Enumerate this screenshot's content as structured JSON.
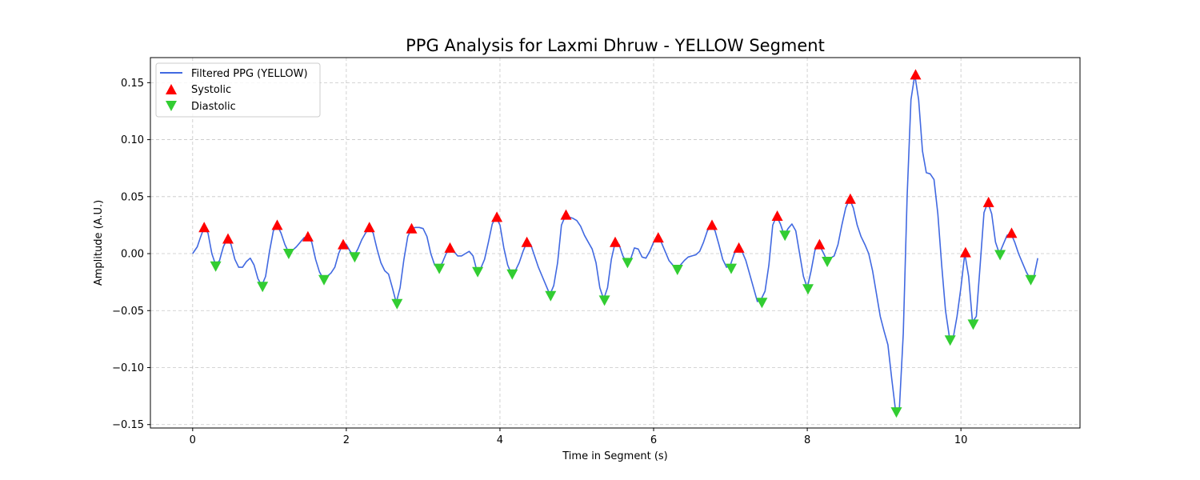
{
  "chart_data": {
    "type": "line",
    "title": "PPG Analysis for Laxmi Dhruw - YELLOW Segment",
    "xlabel": "Time in Segment (s)",
    "ylabel": "Amplitude (A.U.)",
    "xlim": [
      -0.55,
      11.55
    ],
    "ylim": [
      -0.153,
      0.172
    ],
    "xticks": [
      0,
      2,
      4,
      6,
      8,
      10
    ],
    "yticks": [
      -0.15,
      -0.1,
      -0.05,
      0.0,
      0.05,
      0.1,
      0.15
    ],
    "xtick_labels": [
      "0",
      "2",
      "4",
      "6",
      "8",
      "10"
    ],
    "ytick_labels": [
      "−0.15",
      "−0.10",
      "−0.05",
      "0.00",
      "0.05",
      "0.10",
      "0.15"
    ],
    "grid": true,
    "legend_position": "top-left",
    "series": [
      {
        "name": "Filtered PPG (YELLOW)",
        "kind": "line",
        "color": "#4169e1",
        "points": [
          [
            0.0,
            0.0
          ],
          [
            0.06,
            0.006
          ],
          [
            0.1,
            0.014
          ],
          [
            0.15,
            0.023
          ],
          [
            0.2,
            0.018
          ],
          [
            0.25,
            0.0
          ],
          [
            0.3,
            -0.01
          ],
          [
            0.35,
            -0.006
          ],
          [
            0.4,
            0.006
          ],
          [
            0.45,
            0.013
          ],
          [
            0.5,
            0.008
          ],
          [
            0.55,
            -0.005
          ],
          [
            0.6,
            -0.012
          ],
          [
            0.65,
            -0.012
          ],
          [
            0.7,
            -0.007
          ],
          [
            0.75,
            -0.004
          ],
          [
            0.8,
            -0.01
          ],
          [
            0.85,
            -0.022
          ],
          [
            0.9,
            -0.028
          ],
          [
            0.95,
            -0.02
          ],
          [
            1.0,
            0.002
          ],
          [
            1.05,
            0.02
          ],
          [
            1.1,
            0.025
          ],
          [
            1.15,
            0.018
          ],
          [
            1.2,
            0.008
          ],
          [
            1.25,
            0.001
          ],
          [
            1.3,
            0.003
          ],
          [
            1.35,
            0.006
          ],
          [
            1.4,
            0.01
          ],
          [
            1.45,
            0.014
          ],
          [
            1.5,
            0.015
          ],
          [
            1.55,
            0.01
          ],
          [
            1.6,
            -0.005
          ],
          [
            1.65,
            -0.016
          ],
          [
            1.7,
            -0.022
          ],
          [
            1.75,
            -0.02
          ],
          [
            1.8,
            -0.017
          ],
          [
            1.85,
            -0.012
          ],
          [
            1.9,
            0.0
          ],
          [
            1.95,
            0.008
          ],
          [
            2.0,
            0.008
          ],
          [
            2.05,
            0.002
          ],
          [
            2.1,
            -0.002
          ],
          [
            2.15,
            0.004
          ],
          [
            2.2,
            0.012
          ],
          [
            2.25,
            0.018
          ],
          [
            2.3,
            0.023
          ],
          [
            2.35,
            0.018
          ],
          [
            2.4,
            0.004
          ],
          [
            2.45,
            -0.008
          ],
          [
            2.5,
            -0.015
          ],
          [
            2.55,
            -0.018
          ],
          [
            2.6,
            -0.03
          ],
          [
            2.65,
            -0.043
          ],
          [
            2.7,
            -0.03
          ],
          [
            2.75,
            -0.005
          ],
          [
            2.8,
            0.015
          ],
          [
            2.85,
            0.022
          ],
          [
            2.9,
            0.023
          ],
          [
            2.95,
            0.023
          ],
          [
            3.0,
            0.022
          ],
          [
            3.05,
            0.015
          ],
          [
            3.1,
            0.0
          ],
          [
            3.15,
            -0.01
          ],
          [
            3.2,
            -0.013
          ],
          [
            3.25,
            -0.008
          ],
          [
            3.3,
            0.0
          ],
          [
            3.35,
            0.005
          ],
          [
            3.4,
            0.002
          ],
          [
            3.45,
            -0.002
          ],
          [
            3.5,
            -0.002
          ],
          [
            3.55,
            0.0
          ],
          [
            3.6,
            0.002
          ],
          [
            3.65,
            -0.002
          ],
          [
            3.7,
            -0.015
          ],
          [
            3.75,
            -0.013
          ],
          [
            3.8,
            -0.005
          ],
          [
            3.85,
            0.01
          ],
          [
            3.9,
            0.026
          ],
          [
            3.95,
            0.032
          ],
          [
            4.0,
            0.025
          ],
          [
            4.05,
            0.005
          ],
          [
            4.1,
            -0.01
          ],
          [
            4.15,
            -0.018
          ],
          [
            4.2,
            -0.015
          ],
          [
            4.25,
            -0.008
          ],
          [
            4.3,
            0.002
          ],
          [
            4.35,
            0.01
          ],
          [
            4.4,
            0.008
          ],
          [
            4.45,
            -0.002
          ],
          [
            4.5,
            -0.012
          ],
          [
            4.55,
            -0.02
          ],
          [
            4.6,
            -0.028
          ],
          [
            4.65,
            -0.036
          ],
          [
            4.7,
            -0.028
          ],
          [
            4.75,
            -0.008
          ],
          [
            4.8,
            0.025
          ],
          [
            4.85,
            0.033
          ],
          [
            4.9,
            0.032
          ],
          [
            4.95,
            0.031
          ],
          [
            5.0,
            0.029
          ],
          [
            5.05,
            0.024
          ],
          [
            5.1,
            0.016
          ],
          [
            5.15,
            0.01
          ],
          [
            5.2,
            0.004
          ],
          [
            5.25,
            -0.008
          ],
          [
            5.3,
            -0.03
          ],
          [
            5.35,
            -0.04
          ],
          [
            5.4,
            -0.03
          ],
          [
            5.45,
            -0.005
          ],
          [
            5.5,
            0.01
          ],
          [
            5.55,
            0.008
          ],
          [
            5.6,
            -0.002
          ],
          [
            5.65,
            -0.008
          ],
          [
            5.7,
            -0.005
          ],
          [
            5.75,
            0.005
          ],
          [
            5.8,
            0.004
          ],
          [
            5.85,
            -0.003
          ],
          [
            5.9,
            -0.004
          ],
          [
            5.95,
            0.002
          ],
          [
            6.0,
            0.01
          ],
          [
            6.05,
            0.014
          ],
          [
            6.1,
            0.01
          ],
          [
            6.15,
            0.002
          ],
          [
            6.2,
            -0.006
          ],
          [
            6.25,
            -0.01
          ],
          [
            6.3,
            -0.013
          ],
          [
            6.35,
            -0.01
          ],
          [
            6.4,
            -0.006
          ],
          [
            6.45,
            -0.003
          ],
          [
            6.5,
            -0.002
          ],
          [
            6.55,
            -0.001
          ],
          [
            6.6,
            0.002
          ],
          [
            6.65,
            0.01
          ],
          [
            6.7,
            0.02
          ],
          [
            6.75,
            0.025
          ],
          [
            6.8,
            0.02
          ],
          [
            6.85,
            0.008
          ],
          [
            6.9,
            -0.005
          ],
          [
            6.95,
            -0.012
          ],
          [
            7.0,
            -0.01
          ],
          [
            7.05,
            0.0
          ],
          [
            7.1,
            0.006
          ],
          [
            7.15,
            0.002
          ],
          [
            7.2,
            -0.006
          ],
          [
            7.25,
            -0.018
          ],
          [
            7.3,
            -0.03
          ],
          [
            7.35,
            -0.042
          ],
          [
            7.4,
            -0.04
          ],
          [
            7.45,
            -0.033
          ],
          [
            7.5,
            -0.01
          ],
          [
            7.55,
            0.025
          ],
          [
            7.6,
            0.033
          ],
          [
            7.65,
            0.026
          ],
          [
            7.7,
            0.016
          ],
          [
            7.75,
            0.022
          ],
          [
            7.8,
            0.026
          ],
          [
            7.85,
            0.02
          ],
          [
            7.9,
            0.0
          ],
          [
            7.95,
            -0.02
          ],
          [
            8.0,
            -0.03
          ],
          [
            8.05,
            -0.015
          ],
          [
            8.1,
            0.003
          ],
          [
            8.15,
            0.008
          ],
          [
            8.2,
            0.002
          ],
          [
            8.25,
            -0.005
          ],
          [
            8.3,
            -0.004
          ],
          [
            8.35,
            -0.002
          ],
          [
            8.4,
            0.008
          ],
          [
            8.45,
            0.025
          ],
          [
            8.5,
            0.04
          ],
          [
            8.55,
            0.048
          ],
          [
            8.6,
            0.04
          ],
          [
            8.65,
            0.025
          ],
          [
            8.7,
            0.015
          ],
          [
            8.75,
            0.008
          ],
          [
            8.8,
            0.0
          ],
          [
            8.85,
            -0.015
          ],
          [
            8.9,
            -0.035
          ],
          [
            8.95,
            -0.055
          ],
          [
            9.0,
            -0.068
          ],
          [
            9.05,
            -0.08
          ],
          [
            9.1,
            -0.11
          ],
          [
            9.15,
            -0.138
          ],
          [
            9.2,
            -0.135
          ],
          [
            9.25,
            -0.07
          ],
          [
            9.3,
            0.05
          ],
          [
            9.35,
            0.135
          ],
          [
            9.4,
            0.157
          ],
          [
            9.45,
            0.135
          ],
          [
            9.5,
            0.09
          ],
          [
            9.55,
            0.071
          ],
          [
            9.6,
            0.07
          ],
          [
            9.65,
            0.065
          ],
          [
            9.7,
            0.035
          ],
          [
            9.75,
            -0.01
          ],
          [
            9.8,
            -0.05
          ],
          [
            9.85,
            -0.073
          ],
          [
            9.9,
            -0.074
          ],
          [
            9.95,
            -0.055
          ],
          [
            10.0,
            -0.03
          ],
          [
            10.05,
            0.0
          ],
          [
            10.1,
            -0.02
          ],
          [
            10.15,
            -0.06
          ],
          [
            10.2,
            -0.055
          ],
          [
            10.25,
            -0.01
          ],
          [
            10.3,
            0.036
          ],
          [
            10.35,
            0.045
          ],
          [
            10.4,
            0.035
          ],
          [
            10.45,
            0.01
          ],
          [
            10.5,
            0.0
          ],
          [
            10.55,
            0.008
          ],
          [
            10.6,
            0.016
          ],
          [
            10.65,
            0.018
          ],
          [
            10.7,
            0.01
          ],
          [
            10.75,
            0.0
          ],
          [
            10.8,
            -0.008
          ],
          [
            10.85,
            -0.016
          ],
          [
            10.9,
            -0.022
          ],
          [
            10.95,
            -0.02
          ],
          [
            11.0,
            -0.004
          ]
        ]
      },
      {
        "name": "Systolic",
        "kind": "marker-up",
        "color": "#ff0000",
        "points": [
          [
            0.15,
            0.023
          ],
          [
            0.46,
            0.013
          ],
          [
            1.1,
            0.025
          ],
          [
            1.5,
            0.015
          ],
          [
            1.96,
            0.008
          ],
          [
            2.3,
            0.023
          ],
          [
            2.85,
            0.022
          ],
          [
            3.35,
            0.005
          ],
          [
            3.96,
            0.032
          ],
          [
            4.35,
            0.01
          ],
          [
            4.86,
            0.034
          ],
          [
            5.5,
            0.01
          ],
          [
            6.06,
            0.014
          ],
          [
            6.76,
            0.025
          ],
          [
            7.11,
            0.005
          ],
          [
            7.61,
            0.033
          ],
          [
            8.16,
            0.008
          ],
          [
            8.56,
            0.048
          ],
          [
            9.41,
            0.157
          ],
          [
            10.06,
            0.001
          ],
          [
            10.36,
            0.045
          ],
          [
            10.66,
            0.018
          ]
        ]
      },
      {
        "name": "Diastolic",
        "kind": "marker-down",
        "color": "#32cd32",
        "points": [
          [
            0.3,
            -0.011
          ],
          [
            0.91,
            -0.029
          ],
          [
            1.25,
            0.0
          ],
          [
            1.71,
            -0.023
          ],
          [
            2.11,
            -0.003
          ],
          [
            2.66,
            -0.044
          ],
          [
            3.21,
            -0.013
          ],
          [
            3.71,
            -0.016
          ],
          [
            4.16,
            -0.018
          ],
          [
            4.66,
            -0.037
          ],
          [
            5.36,
            -0.041
          ],
          [
            5.66,
            -0.008
          ],
          [
            6.31,
            -0.014
          ],
          [
            7.01,
            -0.013
          ],
          [
            7.41,
            -0.043
          ],
          [
            7.71,
            0.016
          ],
          [
            8.01,
            -0.031
          ],
          [
            8.26,
            -0.007
          ],
          [
            9.16,
            -0.139
          ],
          [
            9.86,
            -0.076
          ],
          [
            10.16,
            -0.062
          ],
          [
            10.51,
            -0.001
          ],
          [
            10.91,
            -0.023
          ]
        ]
      }
    ]
  }
}
